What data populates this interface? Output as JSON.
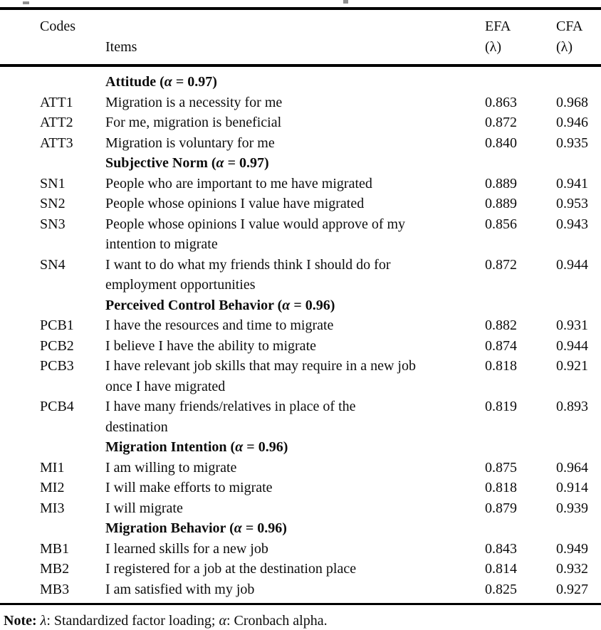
{
  "page": {
    "background": "#ffffff",
    "text_color": "#0d0d0d",
    "rule_color": "#000000"
  },
  "header": {
    "columns": [
      {
        "label": "Codes",
        "sub": ""
      },
      {
        "label": "Items",
        "sub": ""
      },
      {
        "label": "EFA",
        "sub": "(λ)"
      },
      {
        "label": "CFA",
        "sub": "(λ)"
      }
    ]
  },
  "rows": [
    {
      "type": "section",
      "pre": "Attitude (",
      "alpha": "α",
      "post": " = 0.97)"
    },
    {
      "type": "item",
      "code": "ATT1",
      "item": "Migration is a necessity for me",
      "efa": "0.863",
      "cfa": "0.968"
    },
    {
      "type": "item",
      "code": "ATT2",
      "item": "For me, migration is beneficial",
      "efa": "0.872",
      "cfa": "0.946"
    },
    {
      "type": "item",
      "code": "ATT3",
      "item": "Migration is voluntary for me",
      "efa": "0.840",
      "cfa": "0.935"
    },
    {
      "type": "section",
      "pre": "Subjective Norm (",
      "alpha": "α",
      "post": " = 0.97)"
    },
    {
      "type": "item",
      "code": "SN1",
      "item": "People who are important to me have migrated",
      "efa": "0.889",
      "cfa": "0.941"
    },
    {
      "type": "item",
      "code": "SN2",
      "item": "People whose opinions I value have migrated",
      "efa": "0.889",
      "cfa": "0.953"
    },
    {
      "type": "item",
      "code": "SN3",
      "item": "People whose opinions I value would approve of my\nintention to migrate",
      "efa": "0.856",
      "cfa": "0.943"
    },
    {
      "type": "item",
      "code": "SN4",
      "item": "I want to do what my friends think I should do for\nemployment opportunities",
      "efa": "0.872",
      "cfa": "0.944"
    },
    {
      "type": "section",
      "pre": "Perceived Control Behavior (",
      "alpha": "α",
      "post": " = 0.96)"
    },
    {
      "type": "item",
      "code": "PCB1",
      "item": "I have the resources and time to migrate",
      "efa": "0.882",
      "cfa": "0.931"
    },
    {
      "type": "item",
      "code": "PCB2",
      "item": "I believe I have the ability to migrate",
      "efa": "0.874",
      "cfa": "0.944"
    },
    {
      "type": "item",
      "code": "PCB3",
      "item": "I have relevant job skills that may require in a new job\nonce I have migrated",
      "efa": "0.818",
      "cfa": "0.921"
    },
    {
      "type": "item",
      "code": "PCB4",
      "item": "I have many friends/relatives in place of the\ndestination",
      "efa": "0.819",
      "cfa": "0.893"
    },
    {
      "type": "section",
      "pre": "Migration Intention (",
      "alpha": "α",
      "post": " = 0.96)"
    },
    {
      "type": "item",
      "code": "MI1",
      "item": "I am willing to migrate",
      "efa": "0.875",
      "cfa": "0.964"
    },
    {
      "type": "item",
      "code": "MI2",
      "item": "I will make efforts to migrate",
      "efa": "0.818",
      "cfa": "0.914"
    },
    {
      "type": "item",
      "code": "MI3",
      "item": "I will migrate",
      "efa": "0.879",
      "cfa": "0.939"
    },
    {
      "type": "section",
      "pre": "Migration Behavior (",
      "alpha": "α",
      "post": " = 0.96)"
    },
    {
      "type": "item",
      "code": "MB1",
      "item": "I learned skills for a new job",
      "efa": "0.843",
      "cfa": "0.949"
    },
    {
      "type": "item",
      "code": "MB2",
      "item": "I registered for a job at the destination place",
      "efa": "0.814",
      "cfa": "0.932"
    },
    {
      "type": "item",
      "code": "MB3",
      "item": "I am satisfied with my job",
      "efa": "0.825",
      "cfa": "0.927"
    }
  ],
  "note": {
    "parts": [
      {
        "text": "Note:",
        "bold": true,
        "italic": false
      },
      {
        "text": " ",
        "bold": false,
        "italic": false
      },
      {
        "text": "λ",
        "bold": false,
        "italic": true
      },
      {
        "text": ": Standardized factor loading; ",
        "bold": false,
        "italic": false
      },
      {
        "text": "α",
        "bold": false,
        "italic": true
      },
      {
        "text": ": Cronbach alpha.",
        "bold": false,
        "italic": false
      }
    ]
  }
}
